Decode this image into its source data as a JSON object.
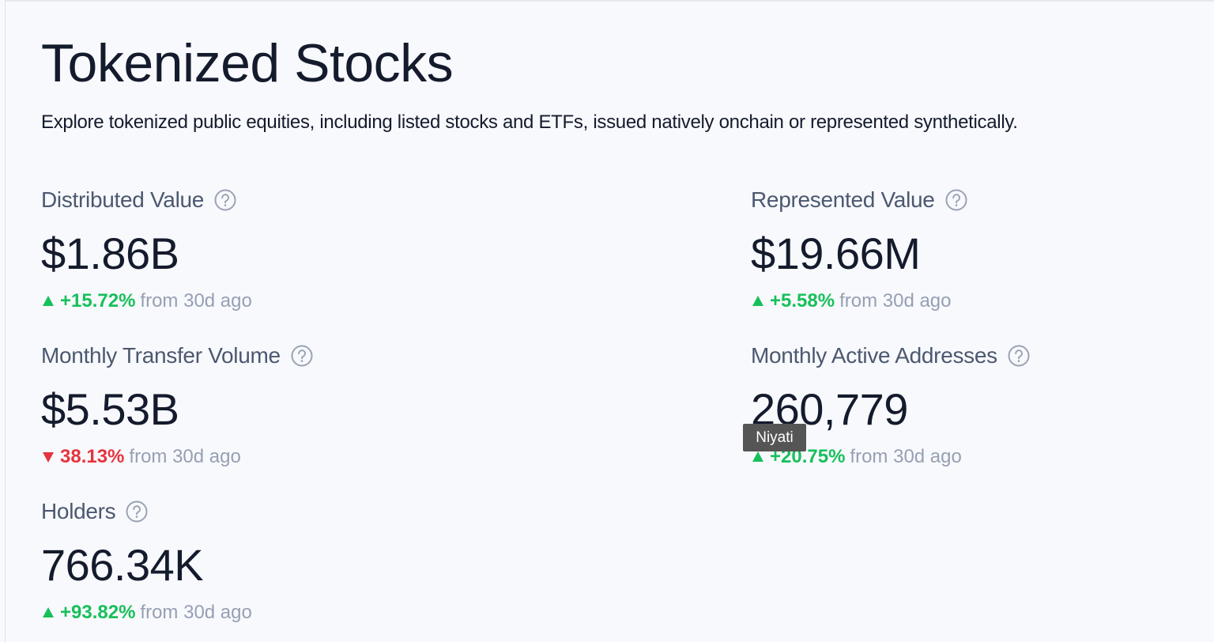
{
  "header": {
    "title": "Tokenized Stocks",
    "subtitle": "Explore tokenized public equities, including listed stocks and ETFs, issued natively onchain or represented synthetically."
  },
  "metrics": [
    {
      "label": "Distributed Value",
      "value": "$1.86B",
      "change": "+15.72%",
      "note": "from 30d ago",
      "trend": "up",
      "color": "#17c05b"
    },
    {
      "label": "Represented Value",
      "value": "$19.66M",
      "change": "+5.58%",
      "note": "from 30d ago",
      "trend": "up",
      "color": "#17c05b"
    },
    {
      "label": "Monthly Transfer Volume",
      "value": "$5.53B",
      "change": "38.13%",
      "note": "from 30d ago",
      "trend": "down",
      "color": "#e5343f"
    },
    {
      "label": "Monthly Active Addresses",
      "value": "260,779",
      "change": "+20.75%",
      "note": "from 30d ago",
      "trend": "up",
      "color": "#17c05b"
    },
    {
      "label": "Holders",
      "value": "766.34K",
      "change": "+93.82%",
      "note": "from 30d ago",
      "trend": "up",
      "color": "#17c05b"
    }
  ],
  "tooltip": {
    "text": "Niyati"
  }
}
